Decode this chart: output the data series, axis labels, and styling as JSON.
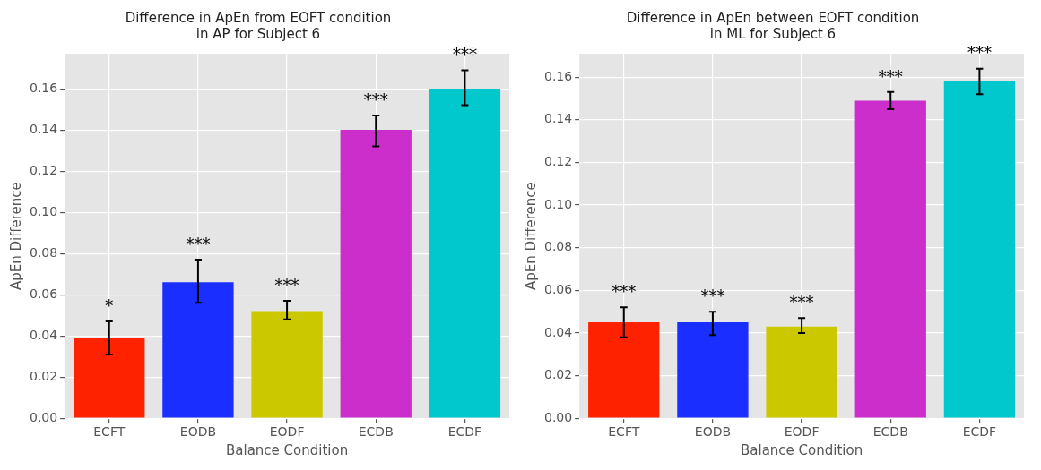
{
  "chart_data": [
    {
      "type": "bar",
      "title": "Difference in ApEn from EOFT condition\nin AP for Subject 6",
      "xlabel": "Balance Condition",
      "ylabel": "ApEn Difference",
      "categories": [
        "ECFT",
        "EODB",
        "EODF",
        "ECDB",
        "ECDF"
      ],
      "values": [
        0.039,
        0.066,
        0.052,
        0.14,
        0.16
      ],
      "colors": [
        "#ff2200",
        "#1a2eff",
        "#cbc800",
        "#cc2ecc",
        "#00c8cc"
      ],
      "errors": [
        [
          0.031,
          0.047
        ],
        [
          0.056,
          0.077
        ],
        [
          0.048,
          0.057
        ],
        [
          0.132,
          0.147
        ],
        [
          0.152,
          0.169
        ]
      ],
      "ylim": [
        0,
        0.177
      ],
      "yticks": [
        {
          "value": 0,
          "label": "0.00"
        },
        {
          "value": 0.02,
          "label": "0.02"
        },
        {
          "value": 0.04,
          "label": "0.04"
        },
        {
          "value": 0.06,
          "label": "0.06"
        },
        {
          "value": 0.08,
          "label": "0.08"
        },
        {
          "value": 0.1,
          "label": "0.10"
        },
        {
          "value": 0.12,
          "label": "0.12"
        },
        {
          "value": 0.14,
          "label": "0.14"
        },
        {
          "value": 0.16,
          "label": "0.16"
        }
      ],
      "grid": true,
      "annotations": [
        "*",
        "***",
        "***",
        "***",
        "***"
      ]
    },
    {
      "type": "bar",
      "title": "Difference in ApEn between EOFT condition\nin ML for Subject 6",
      "xlabel": "Balance Condition",
      "ylabel": "ApEn Difference",
      "categories": [
        "ECFT",
        "EODB",
        "EODF",
        "ECDB",
        "ECDF"
      ],
      "values": [
        0.045,
        0.045,
        0.043,
        0.149,
        0.158
      ],
      "colors": [
        "#ff2200",
        "#1a2eff",
        "#cbc800",
        "#cc2ecc",
        "#00c8cc"
      ],
      "errors": [
        [
          0.038,
          0.052
        ],
        [
          0.039,
          0.05
        ],
        [
          0.04,
          0.047
        ],
        [
          0.145,
          0.153
        ],
        [
          0.152,
          0.164
        ]
      ],
      "ylim": [
        0,
        0.171
      ],
      "yticks": [
        {
          "value": 0,
          "label": "0.00"
        },
        {
          "value": 0.02,
          "label": "0.02"
        },
        {
          "value": 0.04,
          "label": "0.04"
        },
        {
          "value": 0.06,
          "label": "0.06"
        },
        {
          "value": 0.08,
          "label": "0.08"
        },
        {
          "value": 0.1,
          "label": "0.10"
        },
        {
          "value": 0.12,
          "label": "0.12"
        },
        {
          "value": 0.14,
          "label": "0.14"
        },
        {
          "value": 0.16,
          "label": "0.16"
        }
      ],
      "grid": true,
      "annotations": [
        "***",
        "***",
        "***",
        "***",
        "***"
      ]
    }
  ]
}
